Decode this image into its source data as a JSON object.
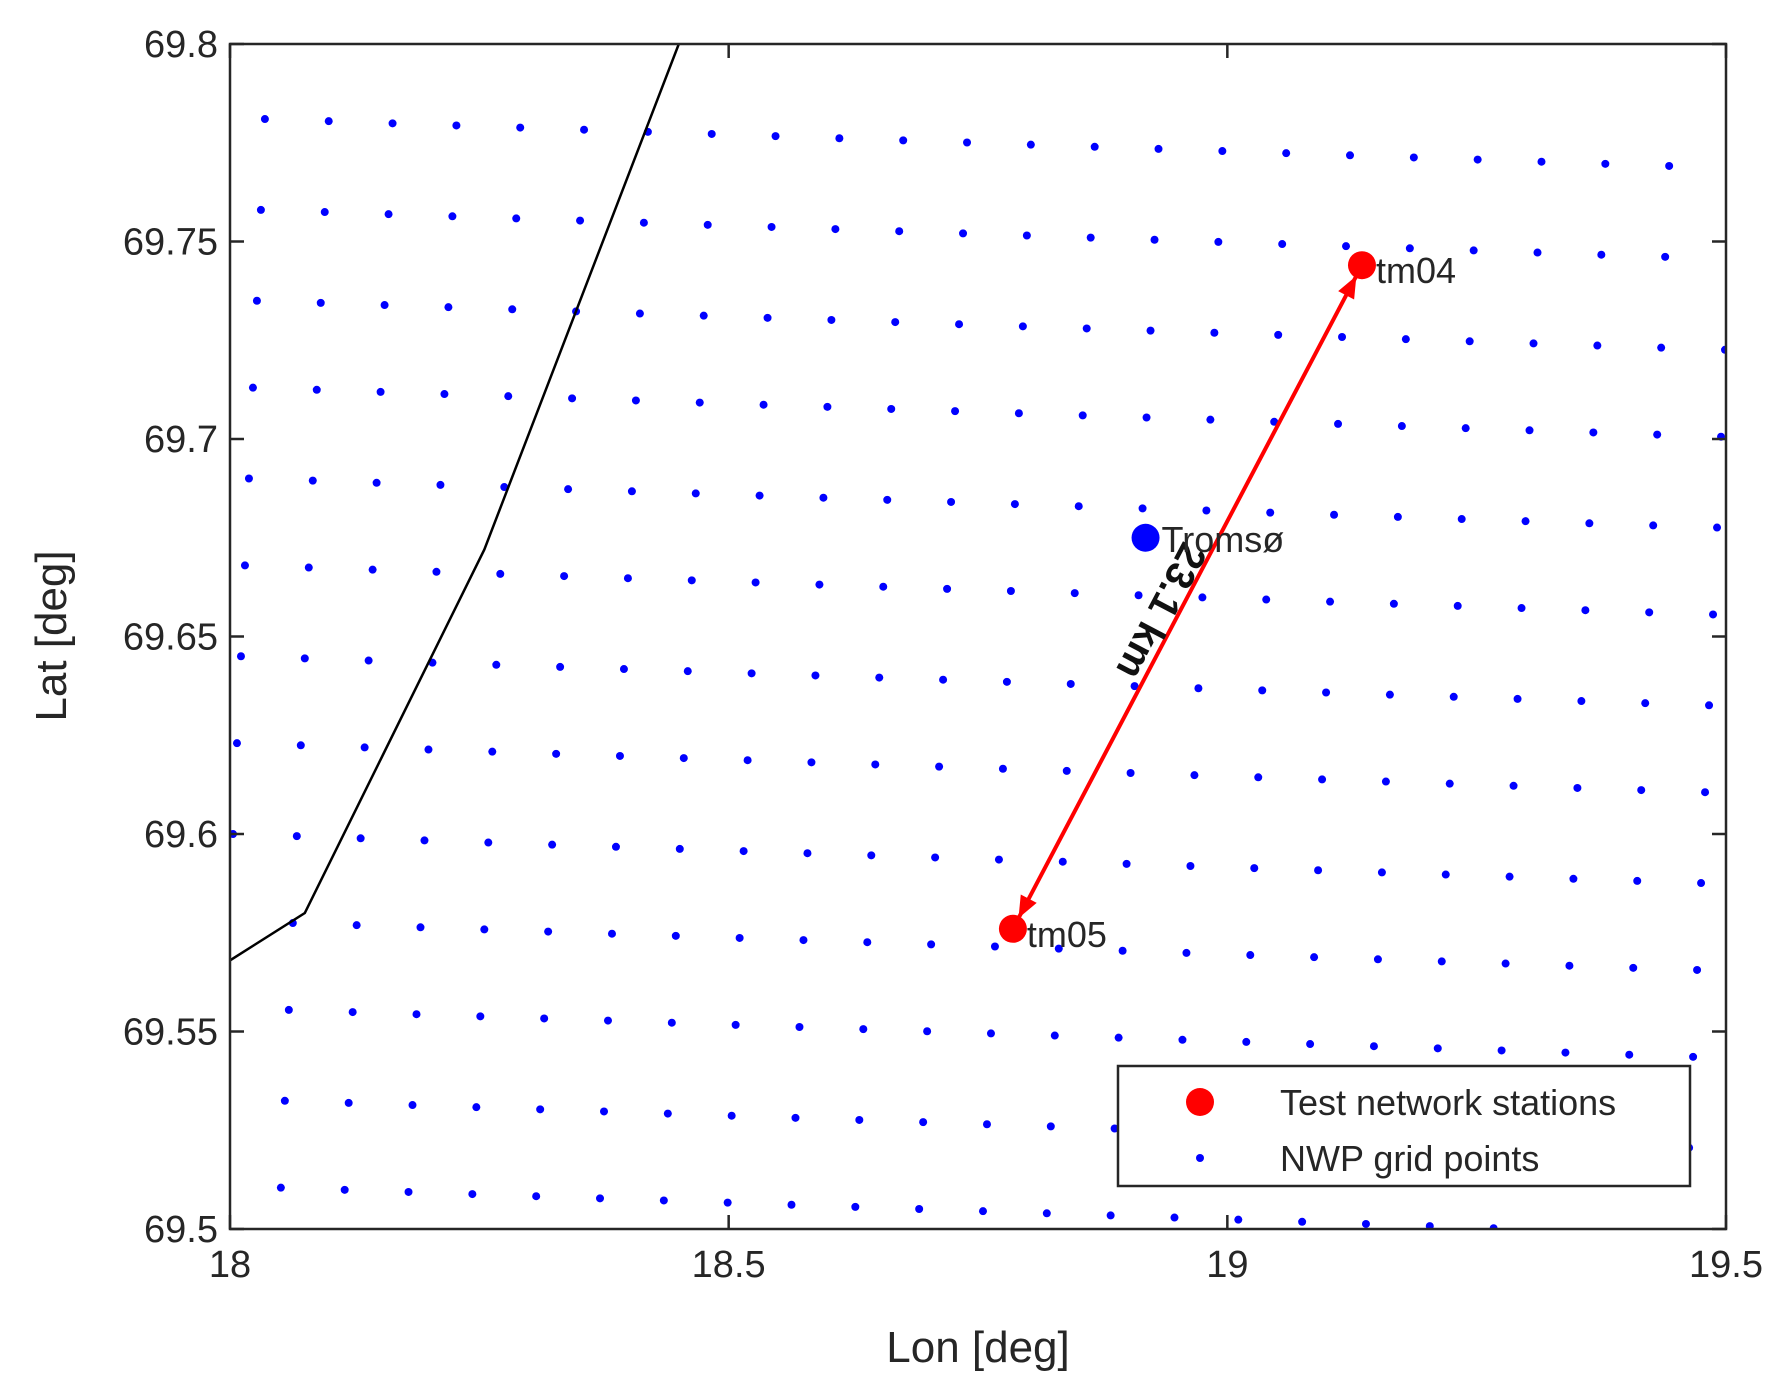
{
  "chart_data": {
    "type": "scatter",
    "xlabel": "Lon [deg]",
    "ylabel": "Lat [deg]",
    "xlim": [
      18,
      19.5
    ],
    "ylim": [
      69.5,
      69.8
    ],
    "xticks": [
      "18",
      "18.5",
      "19",
      "19.5"
    ],
    "yticks": [
      "69.5",
      "69.55",
      "69.6",
      "69.65",
      "69.7",
      "69.75",
      "69.8"
    ],
    "grid": false,
    "legend_position": "bottom-right",
    "legend": [
      {
        "label": "Test network stations",
        "marker": "large-dot",
        "color": "#ff0000"
      },
      {
        "label": "NWP grid points",
        "marker": "small-dot",
        "color": "#0000ff"
      }
    ],
    "series": [
      {
        "name": "Test network stations",
        "color": "#ff0000",
        "points": [
          {
            "label": "tm04",
            "x": 19.135,
            "y": 69.744
          },
          {
            "label": "tm05",
            "x": 18.785,
            "y": 69.576
          }
        ]
      },
      {
        "name": "NWP grid points",
        "color": "#0000ff",
        "grid_rows": [
          {
            "x0": 18.035,
            "y0": 69.781,
            "dx": 0.064,
            "dy": -0.00054,
            "n": 25
          },
          {
            "x0": 18.031,
            "y0": 69.758,
            "dx": 0.064,
            "dy": -0.00054,
            "n": 25
          },
          {
            "x0": 18.027,
            "y0": 69.735,
            "dx": 0.064,
            "dy": -0.00054,
            "n": 25
          },
          {
            "x0": 18.023,
            "y0": 69.713,
            "dx": 0.064,
            "dy": -0.00054,
            "n": 25
          },
          {
            "x0": 18.019,
            "y0": 69.69,
            "dx": 0.064,
            "dy": -0.00054,
            "n": 25
          },
          {
            "x0": 18.015,
            "y0": 69.668,
            "dx": 0.064,
            "dy": -0.00054,
            "n": 25
          },
          {
            "x0": 18.011,
            "y0": 69.645,
            "dx": 0.064,
            "dy": -0.00054,
            "n": 25
          },
          {
            "x0": 18.007,
            "y0": 69.623,
            "dx": 0.064,
            "dy": -0.00054,
            "n": 25
          },
          {
            "x0": 18.003,
            "y0": 69.6,
            "dx": 0.064,
            "dy": -0.00054,
            "n": 25
          },
          {
            "x0": 17.999,
            "y0": 69.578,
            "dx": 0.064,
            "dy": -0.00054,
            "n": 25
          },
          {
            "x0": 17.995,
            "y0": 69.556,
            "dx": 0.064,
            "dy": -0.00054,
            "n": 25
          },
          {
            "x0": 17.991,
            "y0": 69.533,
            "dx": 0.064,
            "dy": -0.00054,
            "n": 25
          },
          {
            "x0": 17.987,
            "y0": 69.511,
            "dx": 0.064,
            "dy": -0.00054,
            "n": 25
          }
        ]
      }
    ],
    "reference_point": {
      "label": "Tromsø",
      "x": 18.918,
      "y": 69.675,
      "color": "#0000ff"
    },
    "distance_annotation": {
      "text": "23.1 km",
      "from": {
        "x": 18.785,
        "y": 69.576
      },
      "to": {
        "x": 19.135,
        "y": 69.744
      },
      "color": "#ff0000"
    },
    "coastline": {
      "color": "#000000",
      "points": [
        [
          18.0,
          69.568
        ],
        [
          18.075,
          69.58
        ],
        [
          18.255,
          69.672
        ],
        [
          18.45,
          69.8
        ]
      ]
    }
  }
}
